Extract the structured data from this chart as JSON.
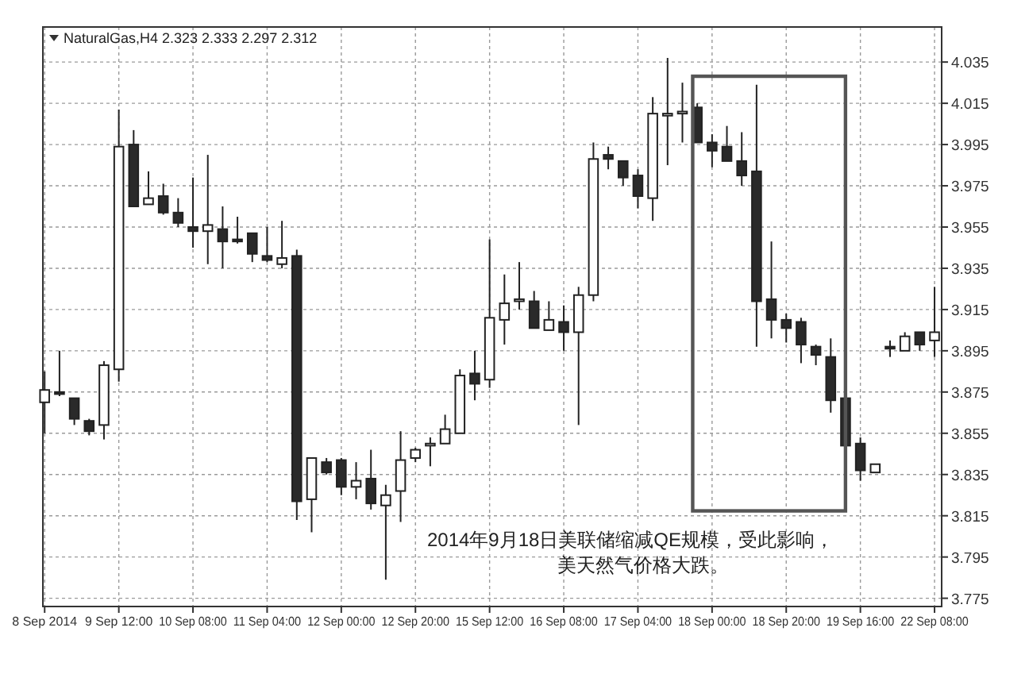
{
  "chart_data": {
    "type": "candlestick",
    "title": "NaturalGas,H4  2.323 2.333 2.297 2.312",
    "categories": [
      "8 Sep 2014",
      null,
      null,
      null,
      null,
      "9 Sep 12:00",
      null,
      null,
      null,
      null,
      "10 Sep 08:00",
      null,
      null,
      null,
      null,
      "11 Sep 04:00",
      null,
      null,
      null,
      null,
      "12 Sep 00:00",
      null,
      null,
      null,
      null,
      "12 Sep 20:00",
      null,
      null,
      null,
      null,
      "15 Sep 12:00",
      null,
      null,
      null,
      null,
      "16 Sep 08:00",
      null,
      null,
      null,
      null,
      "17 Sep 04:00",
      null,
      null,
      null,
      null,
      "18 Sep 00:00",
      null,
      null,
      null,
      null,
      "18 Sep 20:00",
      null,
      null,
      null,
      null,
      "19 Sep 16:00",
      null,
      null,
      null,
      null,
      "22 Sep 08:00"
    ],
    "ohlc": [
      [
        3.87,
        3.885,
        3.855,
        3.876
      ],
      [
        3.875,
        3.895,
        3.873,
        3.874
      ],
      [
        3.872,
        3.872,
        3.859,
        3.862
      ],
      [
        3.861,
        3.862,
        3.854,
        3.856
      ],
      [
        3.859,
        3.89,
        3.852,
        3.888
      ],
      [
        3.886,
        4.012,
        3.88,
        3.994
      ],
      [
        3.995,
        4.002,
        3.965,
        3.965
      ],
      [
        3.966,
        3.982,
        3.966,
        3.969
      ],
      [
        3.97,
        3.976,
        3.961,
        3.962
      ],
      [
        3.962,
        3.969,
        3.955,
        3.957
      ],
      [
        3.955,
        3.979,
        3.945,
        3.953
      ],
      [
        3.953,
        3.99,
        3.937,
        3.956
      ],
      [
        3.954,
        3.965,
        3.935,
        3.948
      ],
      [
        3.949,
        3.96,
        3.947,
        3.948
      ],
      [
        3.952,
        3.952,
        3.938,
        3.942
      ],
      [
        3.941,
        3.955,
        3.938,
        3.939
      ],
      [
        3.937,
        3.958,
        3.935,
        3.94
      ],
      [
        3.941,
        3.944,
        3.813,
        3.822
      ],
      [
        3.823,
        3.843,
        3.807,
        3.843
      ],
      [
        3.841,
        3.843,
        3.835,
        3.836
      ],
      [
        3.842,
        3.843,
        3.825,
        3.829
      ],
      [
        3.829,
        3.841,
        3.823,
        3.832
      ],
      [
        3.833,
        3.847,
        3.818,
        3.821
      ],
      [
        3.82,
        3.83,
        3.784,
        3.825
      ],
      [
        3.827,
        3.856,
        3.812,
        3.842
      ],
      [
        3.843,
        3.848,
        3.841,
        3.847
      ],
      [
        3.849,
        3.853,
        3.839,
        3.85
      ],
      [
        3.85,
        3.864,
        3.85,
        3.857
      ],
      [
        3.855,
        3.886,
        3.855,
        3.883
      ],
      [
        3.884,
        3.895,
        3.871,
        3.879
      ],
      [
        3.881,
        3.949,
        3.877,
        3.911
      ],
      [
        3.91,
        3.932,
        3.898,
        3.918
      ],
      [
        3.919,
        3.938,
        3.915,
        3.92
      ],
      [
        3.919,
        3.924,
        3.906,
        3.906
      ],
      [
        3.905,
        3.919,
        3.905,
        3.91
      ],
      [
        3.909,
        3.917,
        3.895,
        3.904
      ],
      [
        3.904,
        3.926,
        3.859,
        3.922
      ],
      [
        3.922,
        3.996,
        3.919,
        3.988
      ],
      [
        3.99,
        3.994,
        3.983,
        3.988
      ],
      [
        3.987,
        3.987,
        3.975,
        3.979
      ],
      [
        3.98,
        3.983,
        3.964,
        3.97
      ],
      [
        3.969,
        4.018,
        3.958,
        4.01
      ],
      [
        4.009,
        4.037,
        3.985,
        4.01
      ],
      [
        4.01,
        4.025,
        3.996,
        4.011
      ],
      [
        4.013,
        4.015,
        3.996,
        3.996
      ],
      [
        3.996,
        4.0,
        3.984,
        3.992
      ],
      [
        3.994,
        4.004,
        3.987,
        3.987
      ],
      [
        3.987,
        4.001,
        3.975,
        3.98
      ],
      [
        3.982,
        4.024,
        3.897,
        3.919
      ],
      [
        3.92,
        3.948,
        3.901,
        3.91
      ],
      [
        3.91,
        3.913,
        3.899,
        3.906
      ],
      [
        3.909,
        3.911,
        3.889,
        3.898
      ],
      [
        3.897,
        3.898,
        3.888,
        3.893
      ],
      [
        3.892,
        3.901,
        3.865,
        3.871
      ],
      [
        3.872,
        3.889,
        3.832,
        3.849
      ],
      [
        3.85,
        3.853,
        3.832,
        3.837
      ],
      [
        3.836,
        3.84,
        3.836,
        3.84
      ],
      [
        3.897,
        3.9,
        3.892,
        3.896
      ],
      [
        3.895,
        3.904,
        3.895,
        3.902
      ],
      [
        3.904,
        3.904,
        3.895,
        3.898
      ],
      [
        3.9,
        3.926,
        3.892,
        3.904
      ]
    ],
    "ylim": [
      3.771,
      4.052
    ],
    "yticks": [
      3.775,
      3.795,
      3.815,
      3.835,
      3.855,
      3.875,
      3.895,
      3.915,
      3.935,
      3.955,
      3.975,
      3.995,
      4.015,
      4.035
    ],
    "grid": true,
    "annotations": [
      "2014年9月18日美联储缩减QE规模，受此影响，",
      "美天然气价格大跌。"
    ]
  }
}
